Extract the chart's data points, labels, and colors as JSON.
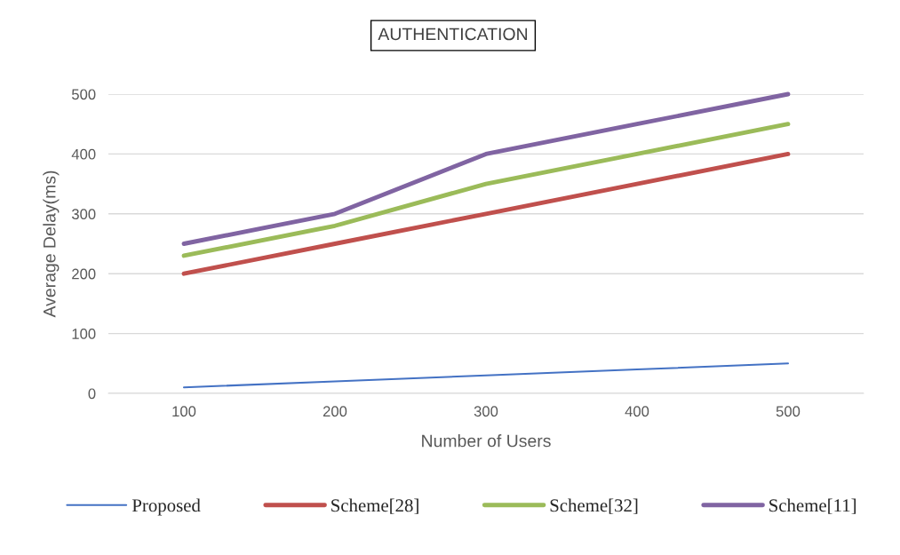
{
  "chart_data": {
    "type": "line",
    "title": "AUTHENTICATION",
    "xlabel": "Number of Users",
    "ylabel": "Average Delay(ms)",
    "categories": [
      "100",
      "200",
      "300",
      "400",
      "500"
    ],
    "series": [
      {
        "name": "Proposed",
        "color": "#4472c4",
        "values": [
          10,
          20,
          30,
          40,
          50
        ]
      },
      {
        "name": "Scheme[28]",
        "color": "#c0504d",
        "values": [
          200,
          250,
          300,
          350,
          400
        ]
      },
      {
        "name": "Scheme[32]",
        "color": "#9bbb59",
        "values": [
          230,
          280,
          350,
          400,
          450
        ]
      },
      {
        "name": "Scheme[11]",
        "color": "#8064a2",
        "values": [
          250,
          300,
          400,
          450,
          500
        ]
      }
    ],
    "ylim": [
      0,
      500
    ],
    "yticks": [
      0,
      100,
      200,
      300,
      400,
      500
    ],
    "grid": "y",
    "legend": "bottom",
    "marker": "none",
    "line_style": "solid"
  }
}
